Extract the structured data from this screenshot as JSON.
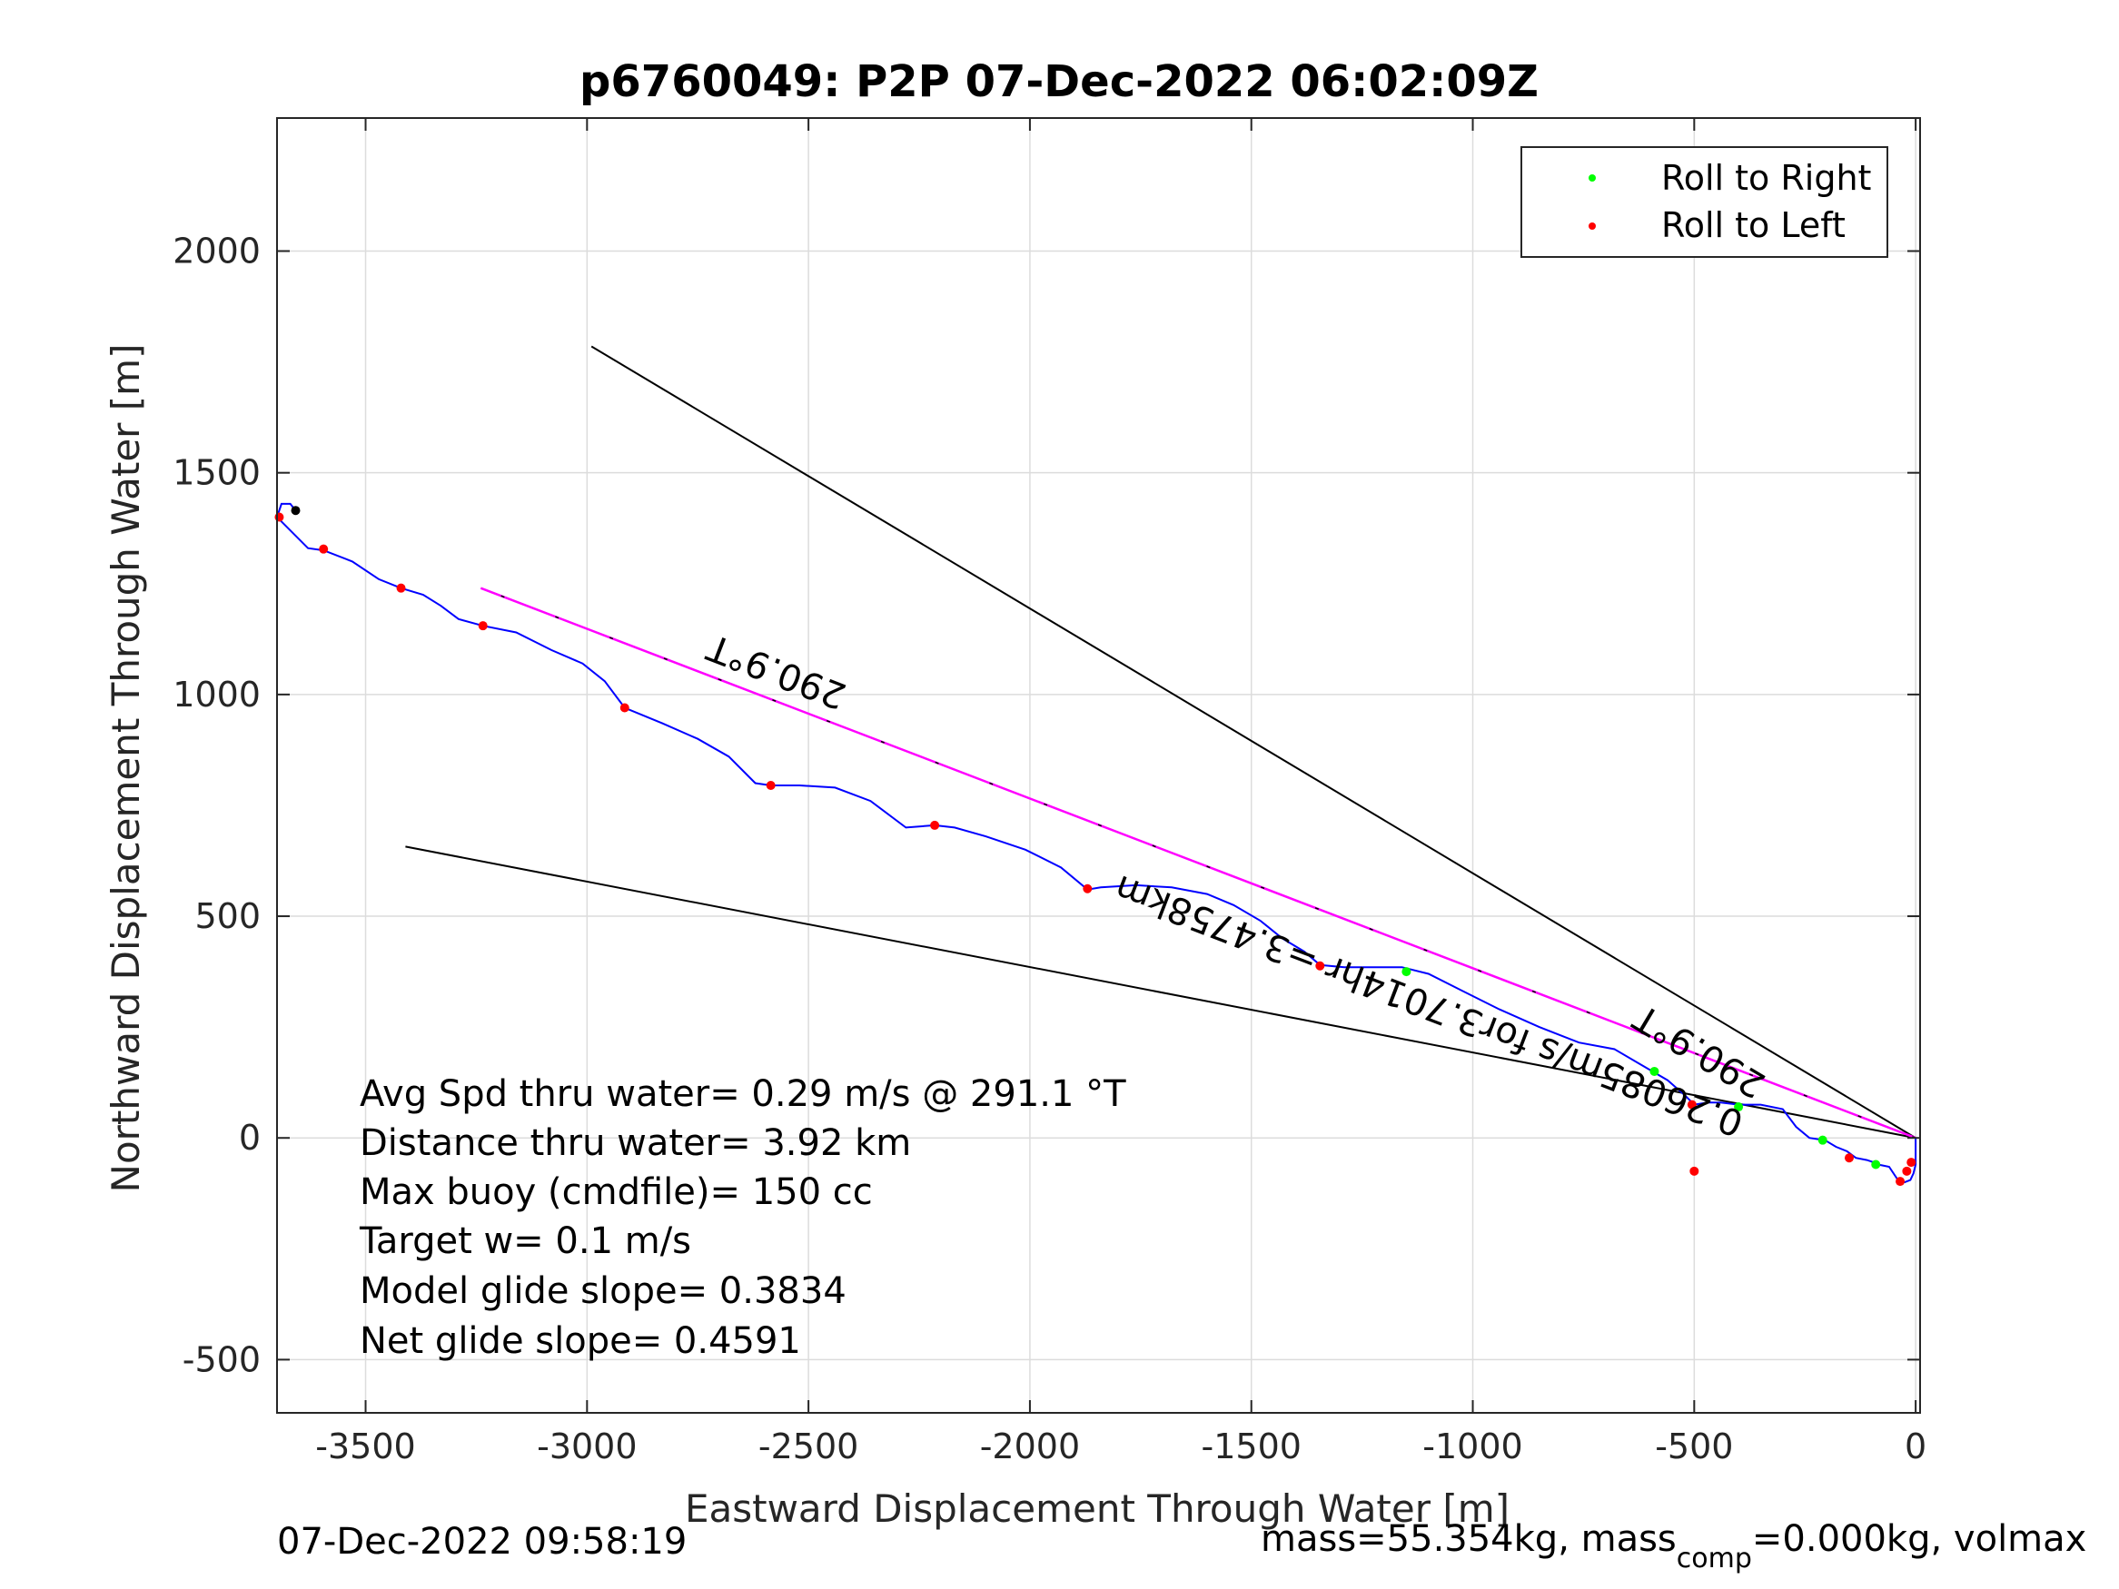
{
  "chart_data": {
    "type": "line",
    "title": "p6760049: P2P 07-Dec-2022 06:02:09Z",
    "xlabel": "Eastward Displacement Through Water [m]",
    "ylabel": "Northward Displacement Through Water [m]",
    "xlim": [
      -3700,
      10
    ],
    "ylim": [
      -620,
      2300
    ],
    "xticks": [
      -3500,
      -3000,
      -2500,
      -2000,
      -1500,
      -1000,
      -500,
      0
    ],
    "xtick_labels": [
      "-3500",
      "-3000",
      "-2500",
      "-2000",
      "-1500",
      "-1000",
      "-500",
      "0"
    ],
    "yticks": [
      -500,
      0,
      500,
      1000,
      1500,
      2000
    ],
    "ytick_labels": [
      "-500",
      "0",
      "500",
      "1000",
      "1500",
      "2000"
    ],
    "grid": true,
    "legend": {
      "placement": "top-right",
      "entries": [
        {
          "label": "Roll to Right",
          "color": "#00ff00"
        },
        {
          "label": "Roll to Left",
          "color": "#ff0000"
        }
      ]
    },
    "colors": {
      "track": "#0000ff",
      "course": "#ff00ff",
      "bounds": "#000000",
      "roll_right": "#00ff00",
      "roll_left": "#ff0000",
      "grid": "#dcdcdc"
    },
    "track": {
      "x": [
        0,
        0,
        -5,
        -12,
        -25,
        -40,
        -60,
        -85,
        -95,
        -110,
        -135,
        -155,
        -180,
        -205,
        -240,
        -270,
        -300,
        -350,
        -400,
        -440,
        -470,
        -500,
        -520,
        -560,
        -620,
        -680,
        -760,
        -850,
        -940,
        -1020,
        -1100,
        -1160,
        -1220,
        -1290,
        -1345,
        -1380,
        -1430,
        -1480,
        -1540,
        -1600,
        -1680,
        -1760,
        -1840,
        -1870,
        -1930,
        -2010,
        -2100,
        -2170,
        -2215,
        -2280,
        -2360,
        -2440,
        -2520,
        -2585,
        -2620,
        -2680,
        -2750,
        -2830,
        -2915,
        -2960,
        -3010,
        -3080,
        -3160,
        -3235,
        -3290,
        -3330,
        -3370,
        -3420,
        -3470,
        -3530,
        -3595,
        -3630,
        -3660,
        -3700,
        -3690,
        -3670,
        -3658
      ],
      "y": [
        0,
        -60,
        -80,
        -95,
        -100,
        -95,
        -65,
        -60,
        -55,
        -50,
        -45,
        -30,
        -20,
        -5,
        0,
        25,
        65,
        75,
        75,
        80,
        80,
        75,
        95,
        130,
        165,
        200,
        215,
        250,
        290,
        330,
        370,
        385,
        385,
        385,
        390,
        420,
        450,
        490,
        525,
        550,
        565,
        570,
        565,
        560,
        610,
        650,
        680,
        700,
        705,
        700,
        760,
        790,
        795,
        795,
        800,
        860,
        900,
        935,
        970,
        1030,
        1070,
        1100,
        1140,
        1155,
        1170,
        1200,
        1225,
        1240,
        1260,
        1300,
        1325,
        1330,
        1360,
        1400,
        1430,
        1430,
        1415
      ]
    },
    "roll_left_points": {
      "x": [
        -10,
        -20,
        -35,
        -150,
        -500,
        -505,
        -1345,
        -1870,
        -2215,
        -2585,
        -2915,
        -3235,
        -3420,
        -3595,
        -3695
      ],
      "y": [
        -55,
        -75,
        -98,
        -45,
        -75,
        75,
        388,
        562,
        705,
        795,
        970,
        1155,
        1240,
        1328,
        1400
      ]
    },
    "roll_right_points": {
      "x": [
        -90,
        -210,
        -400,
        -590,
        -1150
      ],
      "y": [
        -60,
        -5,
        70,
        150,
        375
      ]
    },
    "end_point": {
      "x": -3658,
      "y": 1415,
      "color": "#000000"
    },
    "course_line": {
      "x": [
        0,
        -3240
      ],
      "y": [
        0,
        1240
      ]
    },
    "bound_lines": [
      {
        "x": [
          0,
          -2990
        ],
        "y": [
          0,
          1785
        ]
      },
      {
        "x": [
          0,
          -3410
        ],
        "y": [
          0,
          657
        ]
      }
    ],
    "annotations": [
      "290.9°T",
      "290.9°T",
      "0.26085m/s for3.7014hr =3.4758km"
    ],
    "stats": [
      "Avg Spd thru water=  0.29 m/s @ 291.1 °T",
      "Distance thru water=  3.92 km",
      "Max buoy (cmdfile)= 150 cc",
      "Target w= 0.1 m/s",
      "Model glide slope= 0.3834",
      "Net glide slope= 0.4591"
    ]
  },
  "footer": {
    "timestamp": "07-Dec-2022 09:58:19",
    "mass_prefix": "mass=55.354kg, mass",
    "mass_sub": "comp",
    "mass_suffix": "=0.000kg, volmax"
  }
}
